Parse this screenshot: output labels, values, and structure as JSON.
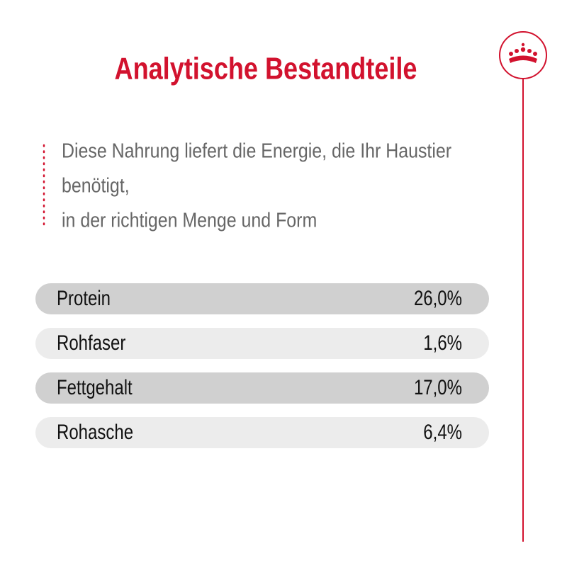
{
  "header": {
    "title": "Analytische Bestandteile"
  },
  "description": {
    "lines": [
      "Diese Nahrung liefert die Energie, die Ihr Haustier",
      "benötigt,",
      "in der richtigen Menge und Form"
    ]
  },
  "table": {
    "rows": [
      [
        "Protein",
        "26,0%"
      ],
      [
        "Rohfaser",
        "1,6%"
      ],
      [
        "Fettgehalt",
        "17,0%"
      ],
      [
        "Rohasche",
        "6,4%"
      ]
    ]
  }
}
